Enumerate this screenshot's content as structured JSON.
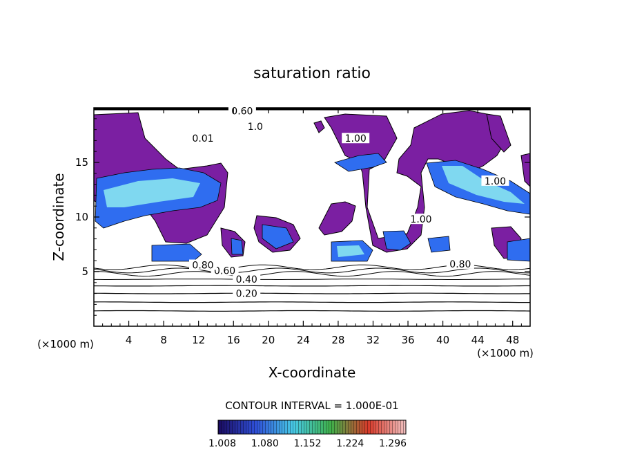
{
  "chart_data": {
    "type": "heatmap",
    "title": "saturation ratio",
    "xlabel": "X-coordinate",
    "ylabel": "Z-coordinate",
    "x_unit": "(×1000 m)",
    "z_unit": "(×1000 m)",
    "xlim": [
      0,
      50
    ],
    "ylim": [
      0,
      20
    ],
    "x_ticks": [
      4,
      8,
      12,
      16,
      20,
      24,
      28,
      32,
      36,
      40,
      44,
      48
    ],
    "y_ticks": [
      5,
      10,
      15
    ],
    "contour_interval_text": "CONTOUR INTERVAL = 1.000E-01",
    "colorbar": {
      "tick_labels": [
        "1.008",
        "1.080",
        "1.152",
        "1.224",
        "1.296"
      ],
      "colors": [
        "#1a0a5e",
        "#2f4fd8",
        "#47c9e6",
        "#3fb04a",
        "#d83a2a",
        "#f2c2c2"
      ]
    },
    "fill_colors": {
      "supersat_low": "#7b1fa2",
      "supersat_mid": "#2f6df0",
      "supersat_high": "#7fd8f0"
    },
    "contour_labels": [
      {
        "text": "0.20",
        "x": 17.5,
        "y": 3.0
      },
      {
        "text": "0.40",
        "x": 17.5,
        "y": 4.3
      },
      {
        "text": "0.60",
        "x": 15.0,
        "y": 5.1
      },
      {
        "text": "0.80",
        "x": 12.5,
        "y": 5.6
      },
      {
        "text": "0.80",
        "x": 42.0,
        "y": 5.7
      },
      {
        "text": "0.60",
        "x": 17.0,
        "y": 19.7
      },
      {
        "text": "1.00",
        "x": 30.0,
        "y": 17.2
      },
      {
        "text": "1.00",
        "x": 46.0,
        "y": 13.3
      },
      {
        "text": "1.00",
        "x": 37.5,
        "y": 9.8
      },
      {
        "text": "0.01",
        "x": 12.5,
        "y": 17.2
      },
      {
        "text": "1.0",
        "x": 18.5,
        "y": 18.3
      }
    ],
    "horizontal_contours_z": [
      1.4,
      2.2,
      3.0,
      3.7,
      4.3,
      4.8,
      5.1,
      5.4
    ]
  }
}
